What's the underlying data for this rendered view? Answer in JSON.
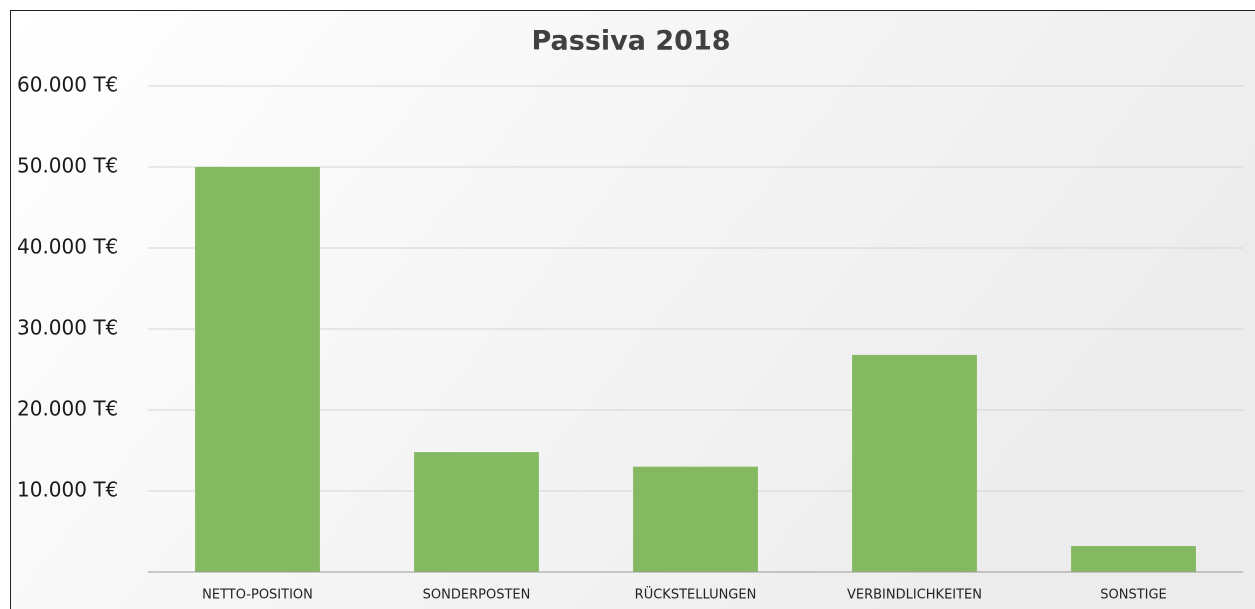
{
  "chart_data": {
    "type": "bar",
    "title": "Passiva 2018",
    "categories": [
      "NETTO-POSITION",
      "SONDERPOSTEN",
      "RÜCKSTELLUNGEN",
      "VERBINDLICHKEITEN",
      "SONSTIGE"
    ],
    "values": [
      50000,
      14800,
      13000,
      26800,
      3200
    ],
    "color": "#84b962",
    "ylim": [
      0,
      60000
    ],
    "yticks": [
      {
        "value": 10000,
        "label": "10.000 T€"
      },
      {
        "value": 20000,
        "label": "20.000 T€"
      },
      {
        "value": 30000,
        "label": "30.000 T€"
      },
      {
        "value": 40000,
        "label": "40.000 T€"
      },
      {
        "value": 50000,
        "label": "50.000 T€"
      },
      {
        "value": 60000,
        "label": "60.000 T€"
      }
    ],
    "grid": true
  }
}
